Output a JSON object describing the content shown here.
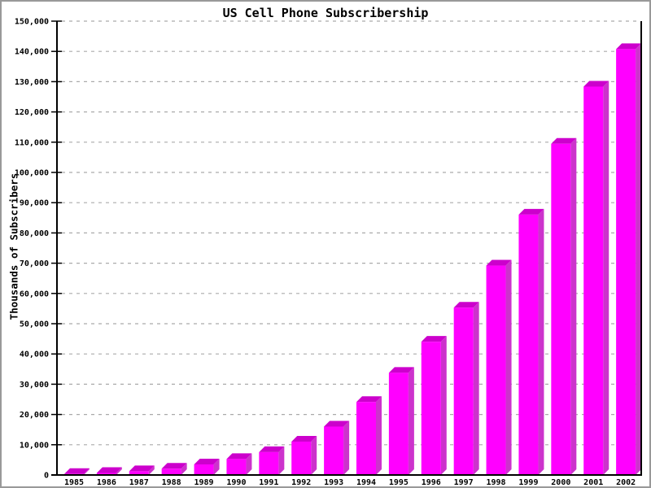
{
  "window": {
    "background_color": "#FFFFFF",
    "frame_border_color": "#999999"
  },
  "chart_data": {
    "type": "bar",
    "title": "US Cell Phone Subscribership",
    "xlabel": "",
    "ylabel": "Thousands of Subscribers",
    "categories": [
      "1985",
      "1986",
      "1987",
      "1988",
      "1989",
      "1990",
      "1991",
      "1992",
      "1993",
      "1994",
      "1995",
      "1996",
      "1997",
      "1998",
      "1999",
      "2000",
      "2001",
      "2002"
    ],
    "values": [
      340,
      682,
      1231,
      2069,
      3509,
      5283,
      7557,
      11033,
      16009,
      24134,
      33786,
      44043,
      55312,
      69209,
      86047,
      109478,
      128375,
      140767
    ],
    "ylim": [
      0,
      150000
    ],
    "ytick_step": 10000,
    "ytick_labels": [
      "0",
      "10,000",
      "20,000",
      "30,000",
      "40,000",
      "50,000",
      "60,000",
      "70,000",
      "80,000",
      "90,000",
      "100,000",
      "110,000",
      "120,000",
      "130,000",
      "140,000",
      "150,000"
    ],
    "grid": "horizontal-dashed",
    "legend": "none",
    "style": "3d-bars",
    "colors": {
      "bar_front": "#FF00FF",
      "bar_top": "#CC00CC",
      "bar_side": "#CC33CC",
      "grid_line": "#AAAAAA",
      "axis": "#000000",
      "text": "#000000"
    }
  }
}
